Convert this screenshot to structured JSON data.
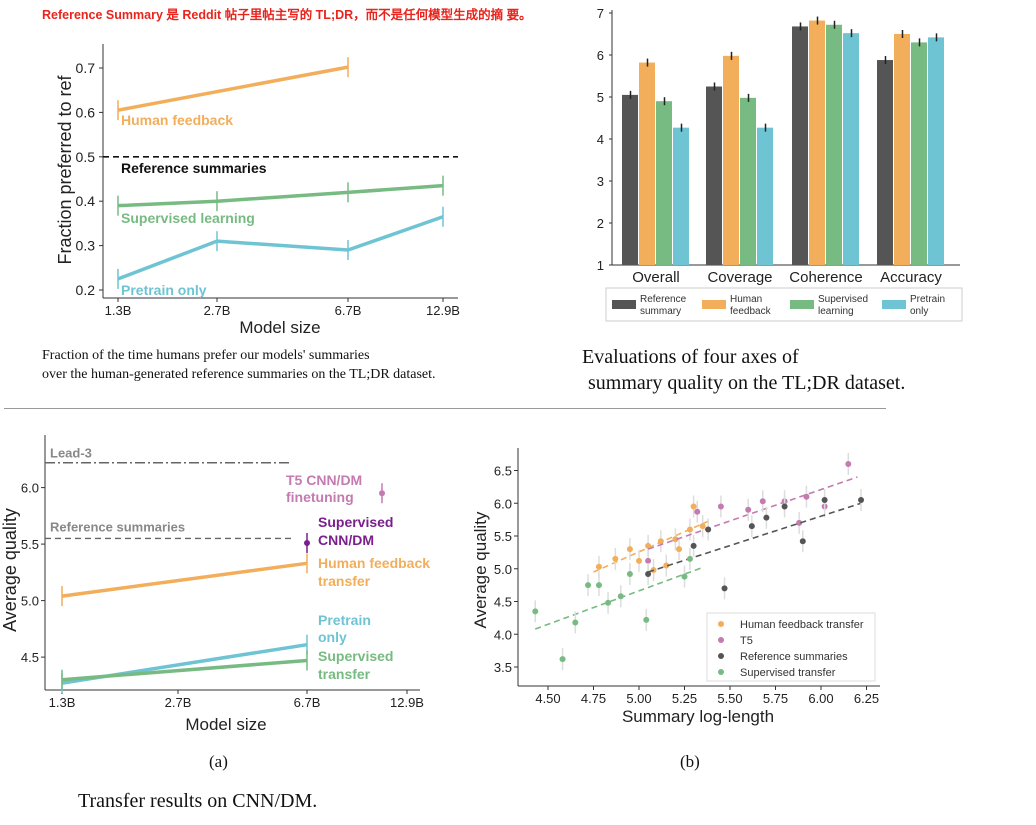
{
  "note": "Reference Summary 是 Reddit 帖子里帖主写的 TL;DR，而不是任何模型生成的摘 要。",
  "captions": {
    "left_top_line1": "Fraction of the time humans prefer our models' summaries",
    "left_top_line2": "over the human-generated reference summaries on the TL;DR dataset.",
    "right_top_line1": "Evaluations of four axes of",
    "right_top_line2": "summary quality on the TL;DR dataset.",
    "panel_a": "(a)",
    "panel_b": "(b)",
    "bottom": "Transfer results on CNN/DM."
  },
  "colors": {
    "human_feedback": "#f2ae5a",
    "supervised": "#77bb82",
    "pretrain": "#6fc4d4",
    "reference": "#555555",
    "t5": "#c47bb0",
    "supervised_cnn": "#7a1f8c",
    "lead3": "#888888"
  },
  "chart_data": [
    {
      "type": "line",
      "xlabel": "Model size",
      "ylabel": "Fraction preferred to ref",
      "x_ticks": [
        "1.3B",
        "2.7B",
        "6.7B",
        "12.9B"
      ],
      "y_ticks": [
        "0.2",
        "0.3",
        "0.4",
        "0.5",
        "0.6",
        "0.7"
      ],
      "ylim": [
        0.18,
        0.76
      ],
      "x_scale": "log",
      "series": [
        {
          "name": "Human feedback",
          "x": [
            1.3,
            6.7
          ],
          "y": [
            0.605,
            0.702
          ]
        },
        {
          "name": "Supervised learning",
          "x": [
            1.3,
            2.7,
            6.7,
            12.9
          ],
          "y": [
            0.39,
            0.4,
            0.42,
            0.435
          ]
        },
        {
          "name": "Pretrain only",
          "x": [
            1.3,
            2.7,
            6.7,
            12.9
          ],
          "y": [
            0.225,
            0.31,
            0.29,
            0.365
          ]
        }
      ],
      "reference_line": {
        "name": "Reference summaries",
        "y": 0.5
      }
    },
    {
      "type": "bar",
      "categories": [
        "Overall",
        "Coverage",
        "Coherence",
        "Accuracy"
      ],
      "y_ticks": [
        "1",
        "2",
        "3",
        "4",
        "5",
        "6",
        "7"
      ],
      "ylim": [
        1,
        7
      ],
      "series": [
        {
          "name": "Reference summary",
          "values": [
            5.05,
            5.25,
            6.68,
            5.88
          ]
        },
        {
          "name": "Human feedback",
          "values": [
            5.82,
            5.98,
            6.82,
            6.5
          ]
        },
        {
          "name": "Supervised learning",
          "values": [
            4.9,
            4.98,
            6.72,
            6.3
          ]
        },
        {
          "name": "Pretrain only",
          "values": [
            4.27,
            4.27,
            6.52,
            6.42
          ]
        }
      ],
      "legend": "bottom"
    },
    {
      "type": "line",
      "xlabel": "Model size",
      "ylabel": "Average quality",
      "x_ticks": [
        "1.3B",
        "2.7B",
        "6.7B",
        "12.9B"
      ],
      "y_ticks": [
        "4.5",
        "5.0",
        "5.5",
        "6.0"
      ],
      "ylim": [
        4.2,
        6.25
      ],
      "x_scale": "log",
      "series": [
        {
          "name": "Human feedback transfer",
          "x": [
            1.3,
            6.7
          ],
          "y": [
            5.04,
            5.33
          ]
        },
        {
          "name": "Pretrain only",
          "x": [
            1.3,
            6.7
          ],
          "y": [
            4.27,
            4.61
          ]
        },
        {
          "name": "Supervised transfer",
          "x": [
            1.3,
            6.7
          ],
          "y": [
            4.3,
            4.47
          ]
        }
      ],
      "points": [
        {
          "name": "T5 CNN/DM finetuning",
          "x": 11,
          "y": 5.95
        },
        {
          "name": "Supervised CNN/DM",
          "x": 6.7,
          "y": 5.51
        }
      ],
      "reference_lines": [
        {
          "name": "Lead-3",
          "y": 6.22
        },
        {
          "name": "Reference summaries",
          "y": 5.55
        }
      ]
    },
    {
      "type": "scatter",
      "xlabel": "Summary log-length",
      "ylabel": "Average quality",
      "x_ticks": [
        "4.50",
        "4.75",
        "5.00",
        "5.25",
        "5.50",
        "5.75",
        "6.00",
        "6.25"
      ],
      "y_ticks": [
        "3.5",
        "4.0",
        "4.5",
        "5.0",
        "5.5",
        "6.0",
        "6.5"
      ],
      "xlim": [
        4.35,
        6.32
      ],
      "ylim": [
        3.2,
        6.8
      ],
      "legend": "bottom-right",
      "series": [
        {
          "name": "Human feedback transfer",
          "points": [
            [
              4.78,
              5.03
            ],
            [
              4.87,
              5.15
            ],
            [
              4.95,
              5.3
            ],
            [
              5.0,
              5.12
            ],
            [
              5.05,
              5.35
            ],
            [
              5.08,
              4.98
            ],
            [
              5.12,
              5.42
            ],
            [
              5.15,
              5.05
            ],
            [
              5.2,
              5.45
            ],
            [
              5.22,
              5.3
            ],
            [
              5.28,
              5.6
            ],
            [
              5.3,
              5.95
            ],
            [
              5.35,
              5.65
            ]
          ],
          "fit": [
            [
              4.75,
              4.95
            ],
            [
              5.4,
              5.75
            ]
          ]
        },
        {
          "name": "T5",
          "points": [
            [
              5.05,
              5.12
            ],
            [
              5.32,
              5.87
            ],
            [
              5.45,
              5.95
            ],
            [
              5.6,
              5.9
            ],
            [
              5.68,
              6.03
            ],
            [
              5.8,
              6.03
            ],
            [
              5.88,
              5.7
            ],
            [
              5.92,
              6.1
            ],
            [
              6.02,
              5.95
            ],
            [
              6.15,
              6.6
            ]
          ],
          "fit": [
            [
              5.05,
              5.3
            ],
            [
              6.2,
              6.4
            ]
          ]
        },
        {
          "name": "Reference summaries",
          "points": [
            [
              5.05,
              4.92
            ],
            [
              5.3,
              5.35
            ],
            [
              5.38,
              5.6
            ],
            [
              5.47,
              4.7
            ],
            [
              5.62,
              5.65
            ],
            [
              5.7,
              5.78
            ],
            [
              5.8,
              5.95
            ],
            [
              5.9,
              5.42
            ],
            [
              6.02,
              6.05
            ],
            [
              6.22,
              6.05
            ]
          ],
          "fit": [
            [
              5.05,
              4.95
            ],
            [
              6.22,
              6.0
            ]
          ]
        },
        {
          "name": "Supervised transfer",
          "points": [
            [
              4.43,
              4.35
            ],
            [
              4.58,
              3.62
            ],
            [
              4.65,
              4.18
            ],
            [
              4.72,
              4.75
            ],
            [
              4.78,
              4.75
            ],
            [
              4.83,
              4.48
            ],
            [
              4.9,
              4.58
            ],
            [
              4.95,
              4.92
            ],
            [
              5.04,
              4.22
            ],
            [
              5.25,
              4.88
            ],
            [
              5.28,
              5.15
            ]
          ],
          "fit": [
            [
              4.43,
              4.08
            ],
            [
              5.35,
              5.02
            ]
          ]
        }
      ]
    }
  ],
  "ui": {
    "c1": {
      "ylabel": "Fraction preferred to ref",
      "xlabel": "Model size",
      "labels": {
        "hf": "Human feedback",
        "ref": "Reference summaries",
        "sup": "Supervised learning",
        "pre": "Pretrain only"
      }
    },
    "c2": {
      "legend": [
        [
          "Reference",
          "summary"
        ],
        [
          "Human",
          "feedback"
        ],
        [
          "Supervised",
          "learning"
        ],
        [
          "Pretrain",
          "only"
        ]
      ]
    },
    "c3": {
      "ylabel": "Average quality",
      "xlabel": "Model size",
      "labels": {
        "lead": "Lead-3",
        "ref": "Reference summaries",
        "t5a": "T5 CNN/DM",
        "t5b": "finetuning",
        "supa": "Supervised",
        "supb": "CNN/DM",
        "hfa": "Human feedback",
        "hfb": "transfer",
        "prea": "Pretrain",
        "preb": "only",
        "sta": "Supervised",
        "stb": "transfer"
      }
    },
    "c4": {
      "ylabel": "Average quality",
      "xlabel": "Summary log-length"
    }
  }
}
